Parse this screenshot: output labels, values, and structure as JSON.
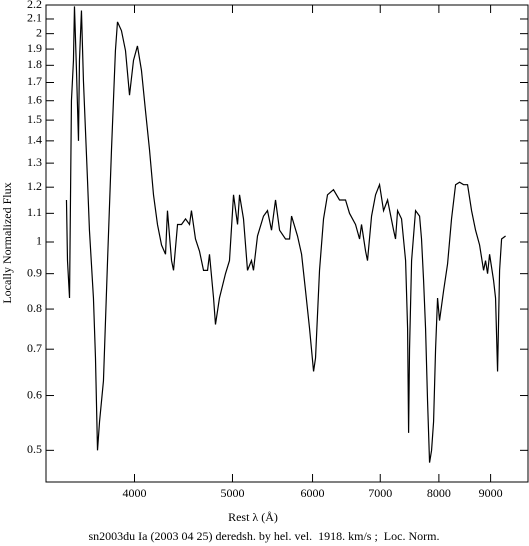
{
  "chart_data": {
    "type": "line",
    "xlabel": "Rest λ (Å)",
    "ylabel": "Locally Normalized Flux",
    "caption": "sn2003du Ia (2003 04 25) deredsh. by hel. vel.  1918. km/s ;  Loc. Norm.",
    "xscale": "log",
    "yscale": "log",
    "xlim": [
      3270,
      9800
    ],
    "ylim": [
      0.45,
      2.2
    ],
    "xticks": [
      4000,
      5000,
      6000,
      7000,
      8000,
      9000
    ],
    "yticks": [
      0.5,
      0.6,
      0.7,
      0.8,
      0.9,
      1,
      1.1,
      1.2,
      1.3,
      1.4,
      1.5,
      1.6,
      1.7,
      1.8,
      1.9,
      2,
      2.1,
      2.2
    ],
    "x": [
      3426,
      3434,
      3450,
      3465,
      3481,
      3489,
      3505,
      3521,
      3529,
      3545,
      3561,
      3594,
      3610,
      3643,
      3660,
      3677,
      3694,
      3727,
      3762,
      3796,
      3830,
      3848,
      3883,
      3919,
      3955,
      3991,
      4027,
      4064,
      4101,
      4139,
      4177,
      4215,
      4254,
      4293,
      4312,
      4352,
      4372,
      4412,
      4452,
      4493,
      4534,
      4554,
      4596,
      4638,
      4681,
      4724,
      4745,
      4789,
      4810,
      4854,
      4921,
      4966,
      5012,
      5058,
      5081,
      5127,
      5174,
      5221,
      5245,
      5293,
      5366,
      5415,
      5465,
      5515,
      5566,
      5642,
      5694,
      5720,
      5798,
      5852,
      5905,
      5959,
      6014,
      6041,
      6096,
      6152,
      6208,
      6293,
      6380,
      6468,
      6527,
      6617,
      6678,
      6708,
      6770,
      6800,
      6863,
      6926,
      6989,
      7053,
      7118,
      7216,
      7248,
      7282,
      7348,
      7416,
      7450,
      7467,
      7483,
      7518,
      7586,
      7656,
      7690,
      7726,
      7761,
      7796,
      7832,
      7868,
      7904,
      7940,
      7976,
      8012,
      8086,
      8160,
      8234,
      8310,
      8386,
      8462,
      8540,
      8618,
      8697,
      8777,
      8857,
      8897,
      8938,
      8979,
      9061,
      9102,
      9144,
      9186,
      9228,
      9312
    ],
    "series": [
      {
        "color": "#000000",
        "values": [
          1.15,
          0.94,
          0.83,
          1.6,
          1.83,
          2.19,
          1.77,
          1.4,
          1.83,
          2.16,
          1.71,
          1.23,
          1.04,
          0.83,
          0.68,
          0.5,
          0.55,
          0.63,
          0.94,
          1.36,
          1.89,
          2.08,
          2.02,
          1.89,
          1.63,
          1.83,
          1.92,
          1.77,
          1.55,
          1.36,
          1.17,
          1.06,
          0.99,
          0.96,
          1.11,
          0.94,
          0.91,
          1.06,
          1.06,
          1.08,
          1.06,
          1.11,
          1.01,
          0.97,
          0.91,
          0.91,
          0.96,
          0.83,
          0.76,
          0.83,
          0.9,
          0.94,
          1.17,
          1.06,
          1.17,
          1.08,
          0.91,
          0.94,
          0.91,
          1.02,
          1.09,
          1.11,
          1.04,
          1.15,
          1.04,
          1.01,
          1.01,
          1.09,
          1.02,
          0.96,
          0.85,
          0.75,
          0.65,
          0.68,
          0.91,
          1.08,
          1.17,
          1.19,
          1.15,
          1.15,
          1.1,
          1.06,
          1.01,
          1.06,
          0.97,
          0.94,
          1.09,
          1.17,
          1.21,
          1.11,
          1.15,
          1.04,
          1.01,
          1.11,
          1.08,
          0.94,
          0.75,
          0.53,
          0.7,
          0.94,
          1.11,
          1.09,
          1.01,
          0.88,
          0.75,
          0.59,
          0.48,
          0.5,
          0.55,
          0.7,
          0.83,
          0.77,
          0.85,
          0.93,
          1.08,
          1.21,
          1.22,
          1.21,
          1.21,
          1.11,
          1.04,
          0.99,
          0.91,
          0.94,
          0.9,
          0.96,
          0.88,
          0.83,
          0.65,
          0.91,
          1.01,
          1.02
        ]
      }
    ]
  }
}
